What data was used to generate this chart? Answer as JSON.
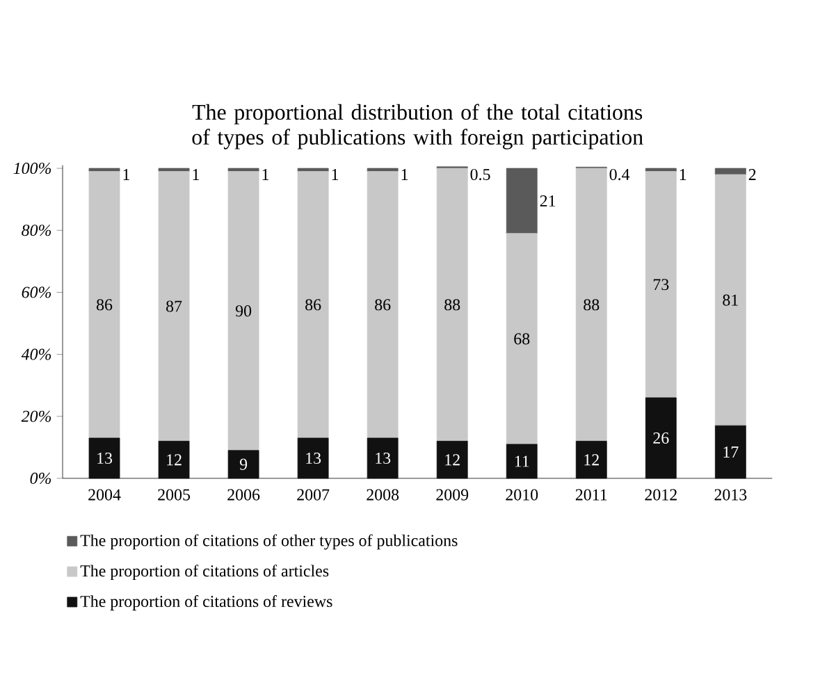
{
  "chart_data": {
    "type": "bar",
    "stacked": true,
    "title": "The proportional distribution of the total citations of types of publications with foreign participation",
    "categories": [
      "2004",
      "2005",
      "2006",
      "2007",
      "2008",
      "2009",
      "2010",
      "2011",
      "2012",
      "2013"
    ],
    "series": [
      {
        "name": "The proportion of citations of reviews",
        "color": "#111111",
        "values": [
          13,
          12,
          9,
          13,
          13,
          12,
          11,
          12,
          26,
          17
        ]
      },
      {
        "name": "The proportion of citations of articles",
        "color": "#c8c8c8",
        "values": [
          86,
          87,
          90,
          86,
          86,
          88,
          68,
          88,
          73,
          81
        ]
      },
      {
        "name": "The proportion of citations of other types of publications",
        "color": "#5a5a5a",
        "values": [
          1,
          1,
          1,
          1,
          1,
          0.5,
          21,
          0.4,
          1,
          2
        ]
      }
    ],
    "ylim": [
      0,
      101
    ],
    "yticks": [
      {
        "value": 0,
        "label": "0%"
      },
      {
        "value": 20,
        "label": "20%"
      },
      {
        "value": 40,
        "label": "40%"
      },
      {
        "value": 60,
        "label": "60%"
      },
      {
        "value": 80,
        "label": "80%"
      },
      {
        "value": 100,
        "label": "100%"
      }
    ],
    "data_labels": true,
    "legend": "bottom",
    "grid": false
  }
}
